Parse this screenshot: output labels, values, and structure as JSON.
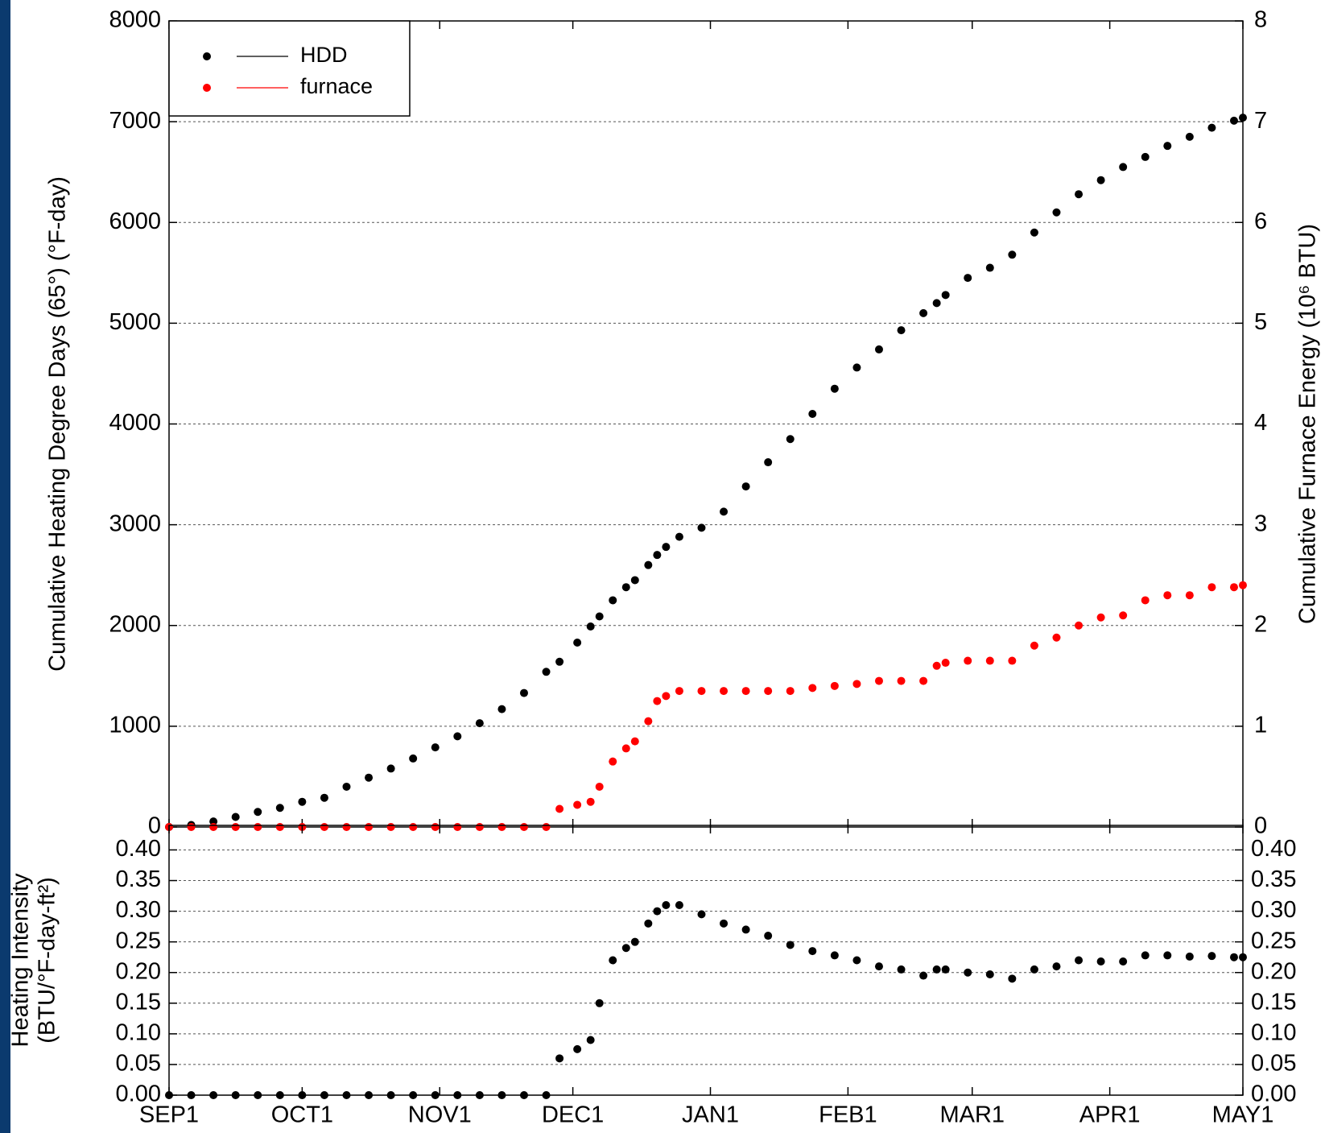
{
  "chart_data": [
    {
      "type": "line",
      "ylabel": "Cumulative Heating Degree Days (65°) (°F-day)",
      "y2label": "Cumulative Furnace Energy (10⁶ BTU)",
      "x": [
        0,
        5,
        10,
        15,
        20,
        25,
        30,
        35,
        40,
        45,
        50,
        55,
        60,
        65,
        70,
        75,
        80,
        85,
        88,
        92,
        95,
        97,
        100,
        103,
        105,
        108,
        110,
        112,
        115,
        120,
        125,
        130,
        135,
        140,
        145,
        150,
        155,
        160,
        165,
        170,
        173,
        175,
        180,
        185,
        190,
        195,
        200,
        205,
        210,
        215,
        220,
        225,
        230,
        235,
        240,
        242
      ],
      "xlim": [
        0,
        242
      ],
      "ylim": [
        0,
        8000
      ],
      "yticks": [
        0,
        1000,
        2000,
        3000,
        4000,
        5000,
        6000,
        7000,
        8000
      ],
      "y2lim": [
        0,
        8
      ],
      "y2ticks": [
        0,
        1,
        2,
        3,
        4,
        5,
        6,
        7,
        8
      ],
      "grid": true,
      "legend": "upper left",
      "series": [
        {
          "name": "HDD",
          "color": "#000000",
          "values": [
            0,
            20,
            55,
            100,
            150,
            190,
            250,
            290,
            400,
            490,
            580,
            680,
            790,
            900,
            1030,
            1170,
            1330,
            1540,
            1640,
            1830,
            1990,
            2090,
            2250,
            2380,
            2450,
            2600,
            2700,
            2780,
            2880,
            2970,
            3130,
            3380,
            3620,
            3850,
            4100,
            4350,
            4560,
            4740,
            4930,
            5100,
            5200,
            5280,
            5450,
            5550,
            5680,
            5900,
            6100,
            6280,
            6420,
            6550,
            6650,
            6760,
            6850,
            6940,
            7010,
            7040
          ]
        },
        {
          "name": "furnace",
          "color": "#ff0000",
          "axis": "y2",
          "values": [
            0,
            0,
            0,
            0,
            0,
            0,
            0,
            0,
            0,
            0,
            0,
            0,
            0,
            0,
            0,
            0,
            0,
            0,
            0.18,
            0.22,
            0.25,
            0.4,
            0.65,
            0.78,
            0.85,
            1.05,
            1.25,
            1.3,
            1.35,
            1.35,
            1.35,
            1.35,
            1.35,
            1.35,
            1.38,
            1.4,
            1.42,
            1.45,
            1.45,
            1.45,
            1.6,
            1.63,
            1.65,
            1.65,
            1.65,
            1.8,
            1.88,
            2.0,
            2.08,
            2.1,
            2.25,
            2.3,
            2.3,
            2.38,
            2.38,
            2.4
          ]
        }
      ]
    },
    {
      "type": "line",
      "ylabel": [
        "Heating Intensity",
        "(BTU/°F-day-ft²)"
      ],
      "x": [
        0,
        5,
        10,
        15,
        20,
        25,
        30,
        35,
        40,
        45,
        50,
        55,
        60,
        65,
        70,
        75,
        80,
        85,
        88,
        92,
        95,
        97,
        100,
        103,
        105,
        108,
        110,
        112,
        115,
        120,
        125,
        130,
        135,
        140,
        145,
        150,
        155,
        160,
        165,
        170,
        173,
        175,
        180,
        185,
        190,
        195,
        200,
        205,
        210,
        215,
        220,
        225,
        230,
        235,
        240,
        242
      ],
      "xlim": [
        0,
        242
      ],
      "xticks": [
        {
          "value": 0,
          "label": "SEP1"
        },
        {
          "value": 30,
          "label": "OCT1"
        },
        {
          "value": 61,
          "label": "NOV1"
        },
        {
          "value": 91,
          "label": "DEC1"
        },
        {
          "value": 122,
          "label": "JAN1"
        },
        {
          "value": 153,
          "label": "FEB1"
        },
        {
          "value": 181,
          "label": "MAR1"
        },
        {
          "value": 212,
          "label": "APR1"
        },
        {
          "value": 242,
          "label": "MAY1"
        }
      ],
      "ylim": [
        0,
        0.44
      ],
      "yticks": [
        {
          "value": 0,
          "label": "0.00"
        },
        {
          "value": 0.05,
          "label": "0.05"
        },
        {
          "value": 0.1,
          "label": "0.10"
        },
        {
          "value": 0.15,
          "label": "0.15"
        },
        {
          "value": 0.2,
          "label": "0.20"
        },
        {
          "value": 0.25,
          "label": "0.25"
        },
        {
          "value": 0.3,
          "label": "0.30"
        },
        {
          "value": 0.35,
          "label": "0.35"
        },
        {
          "value": 0.4,
          "label": "0.40"
        }
      ],
      "grid": true,
      "color": "#000000",
      "values": [
        0,
        0,
        0,
        0,
        0,
        0,
        0,
        0,
        0,
        0,
        0,
        0,
        0,
        0,
        0,
        0,
        0,
        0,
        0.06,
        0.075,
        0.09,
        0.15,
        0.22,
        0.24,
        0.25,
        0.28,
        0.3,
        0.31,
        0.31,
        0.295,
        0.28,
        0.27,
        0.26,
        0.245,
        0.235,
        0.228,
        0.22,
        0.21,
        0.205,
        0.195,
        0.205,
        0.205,
        0.2,
        0.197,
        0.19,
        0.205,
        0.21,
        0.22,
        0.218,
        0.218,
        0.228,
        0.228,
        0.226,
        0.227,
        0.225,
        0.225
      ]
    }
  ]
}
